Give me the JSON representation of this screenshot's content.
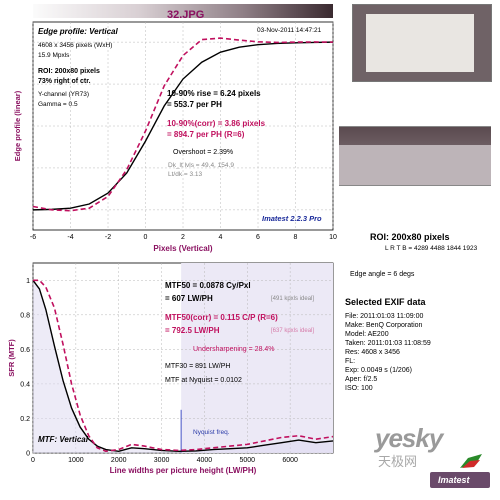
{
  "title": "32.JPG",
  "roi_panel": {
    "title": "ROI: 200x80 pixels",
    "lrtb": "L R T B = 4289 4488  1844 1923",
    "edge_angle": "Edge angle = 6 degs"
  },
  "exif": {
    "title": "Selected EXIF data",
    "file": "File:  2011:01:03 11:09:00",
    "make": "Make:  BenQ Corporation",
    "model": "Model:  AE200",
    "taken": "Taken:  2011:01:03 11:08:59",
    "res": "Res:   4608 x 3456",
    "fl": "FL:",
    "exp": "Exp:   0.0049 s  (1/206)",
    "aper": "Aper:   f/2.5",
    "iso": "ISO:   100"
  },
  "edge": {
    "panel_title": "Edge profile: Vertical",
    "date": "03-Nov-2011 14:47:21",
    "info": [
      "4608 x 3456 pixels (WxH)",
      "15.9 Mpxls",
      "ROI: 200x80 pixels",
      "73% right of ctr.",
      "Y-channel  (YR73)",
      "Gamma = 0.5"
    ],
    "rise_1": "10-90% rise = 6.24 pixels",
    "rise_2": "= 553.7 per PH",
    "corr_1": "10-90%(corr) = 3.86 pixels",
    "corr_2": "= 894.7 per PH  (R=6)",
    "overshoot": "Overshoot = 2.39%",
    "dk_lt": "Dk_lt lvls = 49.4, 154.9",
    "ltdk": "Lt/dk = 3.13",
    "brand": "Imatest 2.2.3 Pro",
    "y_label": "Edge profile (linear)",
    "x_label": "Pixels (Vertical)"
  },
  "mtf": {
    "mtf50_1": "MTF50 = 0.0878 Cy/Pxl",
    "mtf50_2": "= 607 LW/PH",
    "mtf50_ideal": "[491 kpxls ideal]",
    "corr_1": "MTF50(corr) = 0.115 C/P  (R=6)",
    "corr_2": "= 792.5 LW/PH",
    "corr_ideal": "[637 kpxls ideal]",
    "undersharp": "Undersharpening = 28.4%",
    "mtf30": "MTF30 = 891 LW/PH",
    "nyq_val": "MTF at Nyquist = 0.0102",
    "nyq_label": "Nyquist freq.",
    "panel_title": "MTF: Vertical",
    "y_label": "SFR (MTF)",
    "x_label": "Line widths per picture height (LW/PH)"
  },
  "watermark": {
    "site": "yesky",
    "cn": "天极网",
    "brand": "Imatest"
  },
  "chart_data": [
    {
      "type": "line",
      "title": "Edge profile: Vertical",
      "xlabel": "Pixels (Vertical)",
      "ylabel": "Edge profile (linear)",
      "xlim": [
        -6,
        10
      ],
      "x_ticks": [
        -6,
        -4,
        -2,
        0,
        2,
        4,
        6,
        8,
        10
      ],
      "grid": true,
      "series": [
        {
          "color": "#000000",
          "x": [
            -6,
            -5,
            -4,
            -3,
            -2,
            -1,
            0,
            1,
            2,
            3,
            4,
            5,
            6,
            7,
            8,
            9,
            10
          ],
          "y": [
            0.0,
            0.003,
            0.01,
            0.035,
            0.1,
            0.22,
            0.41,
            0.62,
            0.78,
            0.88,
            0.94,
            0.97,
            0.985,
            0.992,
            0.996,
            0.998,
            1.0
          ]
        },
        {
          "color": "#c0105e",
          "x": [
            -6,
            -5,
            -4,
            -3,
            -2,
            -1,
            0,
            1,
            2,
            3,
            4,
            5,
            6,
            7,
            8,
            9,
            10
          ],
          "y": [
            0.02,
            0.0,
            -0.005,
            0.01,
            0.08,
            0.24,
            0.47,
            0.74,
            0.92,
            1.015,
            1.024,
            1.012,
            1.002,
            0.998,
            1.0,
            1.001,
            1.0
          ]
        }
      ]
    },
    {
      "type": "line",
      "title": "MTF: Vertical",
      "xlabel": "Line widths per picture height (LW/PH)",
      "ylabel": "SFR (MTF)",
      "xlim": [
        0,
        7000
      ],
      "ylim": [
        0,
        1.1
      ],
      "x_ticks": [
        0,
        1000,
        2000,
        3000,
        4000,
        5000,
        6000
      ],
      "y_ticks": [
        0,
        0.2,
        0.4,
        0.6,
        0.8,
        1
      ],
      "nyquist": 3456,
      "grid": true,
      "series": [
        {
          "color": "#000000",
          "x": [
            0,
            150,
            300,
            500,
            700,
            900,
            1100,
            1300,
            1500,
            1700,
            2000,
            2300,
            2600,
            3000,
            3400,
            3800,
            4200,
            4600,
            5000,
            5400,
            5800,
            6200,
            6600,
            7000
          ],
          "y": [
            1.0,
            0.95,
            0.83,
            0.62,
            0.42,
            0.26,
            0.15,
            0.08,
            0.04,
            0.02,
            0.01,
            0.03,
            0.025,
            0.015,
            0.01,
            0.012,
            0.02,
            0.025,
            0.03,
            0.045,
            0.06,
            0.075,
            0.06,
            0.07
          ]
        },
        {
          "color": "#c0105e",
          "x": [
            0,
            150,
            300,
            500,
            700,
            900,
            1100,
            1300,
            1500,
            1700,
            2000,
            2300,
            2600,
            3000,
            3400,
            3800,
            4200,
            4600,
            5000,
            5400,
            5800,
            6200,
            6600,
            7000
          ],
          "y": [
            1.0,
            1.0,
            0.96,
            0.84,
            0.63,
            0.4,
            0.22,
            0.1,
            0.03,
            0.01,
            0.02,
            0.05,
            0.04,
            0.02,
            0.015,
            0.02,
            0.03,
            0.04,
            0.05,
            0.07,
            0.09,
            0.1,
            0.08,
            0.095
          ]
        }
      ]
    }
  ]
}
